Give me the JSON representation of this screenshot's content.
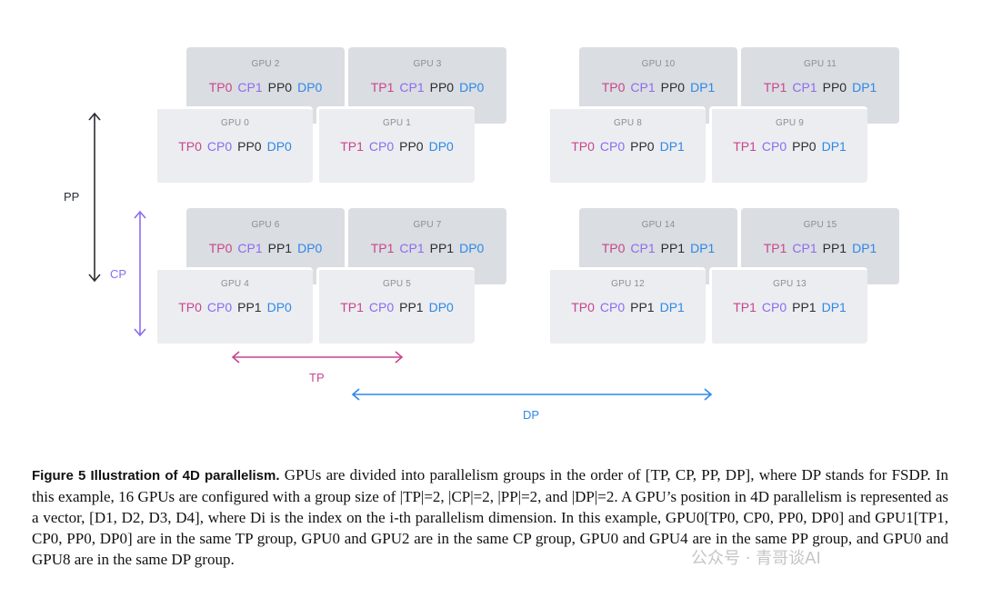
{
  "diagram": {
    "gpus": [
      {
        "name": "GPU 2",
        "tp": "TP0",
        "cp": "CP1",
        "pp": "PP0",
        "dp": "DP0"
      },
      {
        "name": "GPU 3",
        "tp": "TP1",
        "cp": "CP1",
        "pp": "PP0",
        "dp": "DP0"
      },
      {
        "name": "GPU 0",
        "tp": "TP0",
        "cp": "CP0",
        "pp": "PP0",
        "dp": "DP0"
      },
      {
        "name": "GPU 1",
        "tp": "TP1",
        "cp": "CP0",
        "pp": "PP0",
        "dp": "DP0"
      },
      {
        "name": "GPU 10",
        "tp": "TP0",
        "cp": "CP1",
        "pp": "PP0",
        "dp": "DP1"
      },
      {
        "name": "GPU 11",
        "tp": "TP1",
        "cp": "CP1",
        "pp": "PP0",
        "dp": "DP1"
      },
      {
        "name": "GPU 8",
        "tp": "TP0",
        "cp": "CP0",
        "pp": "PP0",
        "dp": "DP1"
      },
      {
        "name": "GPU 9",
        "tp": "TP1",
        "cp": "CP0",
        "pp": "PP0",
        "dp": "DP1"
      },
      {
        "name": "GPU 6",
        "tp": "TP0",
        "cp": "CP1",
        "pp": "PP1",
        "dp": "DP0"
      },
      {
        "name": "GPU 7",
        "tp": "TP1",
        "cp": "CP1",
        "pp": "PP1",
        "dp": "DP0"
      },
      {
        "name": "GPU 4",
        "tp": "TP0",
        "cp": "CP0",
        "pp": "PP1",
        "dp": "DP0"
      },
      {
        "name": "GPU 5",
        "tp": "TP1",
        "cp": "CP0",
        "pp": "PP1",
        "dp": "DP0"
      },
      {
        "name": "GPU 14",
        "tp": "TP0",
        "cp": "CP1",
        "pp": "PP1",
        "dp": "DP1"
      },
      {
        "name": "GPU 15",
        "tp": "TP1",
        "cp": "CP1",
        "pp": "PP1",
        "dp": "DP1"
      },
      {
        "name": "GPU 12",
        "tp": "TP0",
        "cp": "CP0",
        "pp": "PP1",
        "dp": "DP1"
      },
      {
        "name": "GPU 13",
        "tp": "TP1",
        "cp": "CP0",
        "pp": "PP1",
        "dp": "DP1"
      }
    ],
    "axes": {
      "pp": "PP",
      "cp": "CP",
      "tp": "TP",
      "dp": "DP"
    },
    "colors": {
      "tp": "#c9448f",
      "cp": "#8b6cf0",
      "pp": "#2a2e33",
      "dp": "#2e88e8"
    }
  },
  "caption": {
    "label": "Figure 5  Illustration of 4D parallelism.",
    "text": " GPUs are divided into parallelism groups in the order of [TP, CP, PP, DP], where DP stands for FSDP. In this example, 16 GPUs are configured with a group size of |TP|=2, |CP|=2, |PP|=2, and |DP|=2. A GPU’s position in 4D parallelism is represented as a vector, [D1, D2, D3, D4], where Di is the index on the i-th parallelism dimension. In this example, GPU0[TP0, CP0, PP0, DP0] and GPU1[TP1, CP0, PP0, DP0] are in the same TP group, GPU0 and GPU2 are in the same CP group, GPU0 and GPU4 are in the same PP group, and GPU0 and GPU8 are in the same DP group."
  },
  "watermark": "公众号 · 青哥谈AI"
}
